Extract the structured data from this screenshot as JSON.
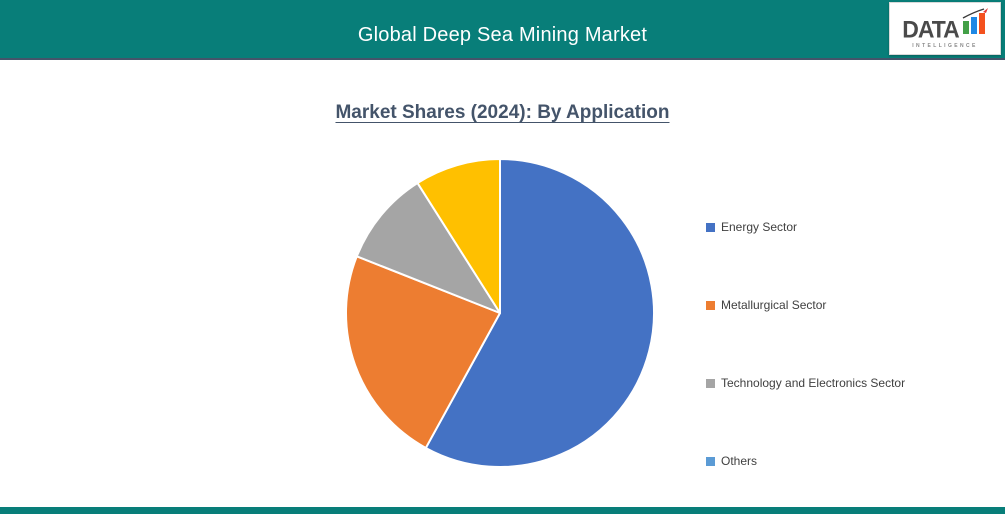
{
  "header": {
    "title": "Global Deep Sea Mining Market"
  },
  "logo": {
    "text": "DATA",
    "subtext": "INTELLIGENCE"
  },
  "chart_data": {
    "type": "pie",
    "title": "Market Shares (2024): By Application",
    "categories": [
      "Energy Sector",
      "Metallurgical Sector",
      "Technology and Electronics Sector",
      "Others"
    ],
    "values": [
      58,
      23,
      10,
      9
    ],
    "unit": "%",
    "start_angle_deg": 0,
    "direction": "clockwise",
    "legend_position": "right",
    "slice_colors": [
      "#4472C4",
      "#ED7D31",
      "#A5A5A5",
      "#FFC000"
    ],
    "legend_marker_colors": [
      "#4472C4",
      "#ED7D31",
      "#A5A5A5",
      "#5B9BD5"
    ]
  },
  "colors": {
    "header_bg": "#087E79",
    "footer_bg": "#087E79",
    "divider": "#44546A",
    "title_text": "#44546A",
    "header_text": "#FFFFFF",
    "legend_text": "#404040",
    "logo_bar_green": "#43A047",
    "logo_bar_blue": "#1E88E5",
    "logo_bar_orange": "#F4511E",
    "logo_arrow_tip": "#E53935"
  }
}
